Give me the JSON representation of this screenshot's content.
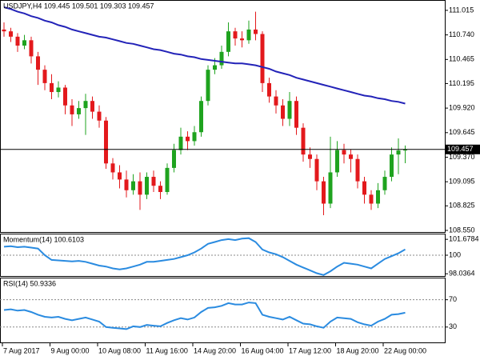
{
  "chart_data": [
    {
      "type": "candlestick",
      "title": "USDJPY,H4  109.445 109.501 109.303 109.457",
      "categories": [
        "7 Aug 2017",
        null,
        null,
        null,
        null,
        null,
        null,
        "9 Aug 00:00",
        null,
        null,
        null,
        null,
        null,
        null,
        "10 Aug 08:00",
        null,
        null,
        null,
        null,
        null,
        null,
        "11 Aug 16:00",
        null,
        null,
        null,
        null,
        null,
        null,
        "14 Aug 20:00",
        null,
        null,
        null,
        null,
        null,
        null,
        "16 Aug 04:00",
        null,
        null,
        null,
        null,
        null,
        null,
        "17 Aug 12:00",
        null,
        null,
        null,
        null,
        null,
        null,
        "18 Aug 20:00",
        null,
        null,
        null,
        null,
        null,
        null,
        "22 Aug 00:00",
        null,
        null,
        null
      ],
      "open": [
        110.8,
        110.78,
        110.72,
        110.62,
        110.68,
        110.5,
        110.35,
        110.2,
        110.1,
        110.15,
        109.95,
        109.85,
        109.92,
        110.0,
        109.88,
        109.78,
        109.3,
        109.2,
        109.12,
        109.0,
        109.1,
        108.95,
        109.15,
        109.05,
        108.98,
        109.25,
        109.45,
        109.6,
        109.55,
        109.65,
        110.0,
        110.35,
        110.4,
        110.55,
        110.78,
        110.7,
        110.68,
        110.8,
        110.75,
        110.2,
        110.05,
        109.95,
        109.8,
        110.0,
        109.7,
        109.4,
        109.35,
        109.1,
        108.85,
        109.2,
        109.45,
        109.4,
        109.35,
        109.1,
        108.95,
        108.85,
        109.0,
        109.15,
        109.4,
        109.445
      ],
      "high": [
        110.88,
        110.82,
        110.76,
        110.74,
        110.72,
        110.55,
        110.4,
        110.3,
        110.22,
        110.18,
        110.02,
        110.0,
        110.08,
        110.05,
        109.95,
        109.82,
        109.36,
        109.28,
        109.22,
        109.18,
        109.2,
        109.2,
        109.22,
        109.1,
        109.3,
        109.52,
        109.7,
        109.66,
        109.72,
        110.05,
        110.4,
        110.48,
        110.62,
        110.88,
        110.82,
        110.78,
        110.9,
        111.0,
        110.78,
        110.26,
        110.12,
        110.02,
        110.1,
        110.05,
        109.75,
        109.48,
        109.4,
        109.15,
        109.6,
        109.55,
        109.52,
        109.46,
        109.4,
        109.15,
        109.0,
        109.08,
        109.22,
        109.48,
        109.58,
        109.501
      ],
      "low": [
        110.72,
        110.66,
        110.55,
        110.58,
        110.42,
        110.18,
        110.12,
        110.02,
        110.04,
        109.85,
        109.72,
        109.8,
        109.62,
        109.8,
        109.7,
        109.24,
        109.12,
        109.02,
        108.92,
        108.95,
        108.78,
        108.9,
        108.98,
        108.9,
        108.95,
        109.2,
        109.4,
        109.45,
        109.5,
        109.6,
        109.95,
        110.3,
        110.36,
        110.5,
        110.62,
        110.6,
        110.64,
        110.68,
        110.1,
        109.98,
        109.86,
        109.72,
        109.72,
        109.62,
        109.32,
        109.25,
        109.0,
        108.72,
        108.8,
        109.15,
        109.3,
        109.2,
        109.02,
        108.85,
        108.78,
        108.8,
        108.95,
        109.1,
        109.18,
        109.303
      ],
      "close": [
        110.78,
        110.72,
        110.62,
        110.68,
        110.5,
        110.35,
        110.2,
        110.1,
        110.15,
        109.95,
        109.85,
        109.92,
        110.0,
        109.88,
        109.78,
        109.3,
        109.2,
        109.12,
        109.0,
        109.1,
        108.95,
        109.15,
        109.05,
        108.98,
        109.25,
        109.45,
        109.6,
        109.55,
        109.65,
        110.0,
        110.35,
        110.4,
        110.55,
        110.78,
        110.7,
        110.68,
        110.8,
        110.75,
        110.2,
        110.05,
        109.95,
        109.8,
        110.0,
        109.7,
        109.4,
        109.35,
        109.1,
        108.85,
        109.2,
        109.45,
        109.4,
        109.35,
        109.1,
        108.95,
        108.85,
        109.0,
        109.15,
        109.4,
        109.445,
        109.457
      ],
      "up_color": "#1fa31f",
      "down_color": "#e3191c",
      "series": [
        {
          "color": "#2323b8",
          "values": [
            111.05,
            111.03,
            111.0,
            110.98,
            110.95,
            110.93,
            110.9,
            110.88,
            110.85,
            110.83,
            110.8,
            110.78,
            110.76,
            110.74,
            110.72,
            110.71,
            110.69,
            110.67,
            110.65,
            110.64,
            110.62,
            110.6,
            110.58,
            110.57,
            110.55,
            110.53,
            110.52,
            110.5,
            110.49,
            110.47,
            110.46,
            110.45,
            110.44,
            110.43,
            110.42,
            110.42,
            110.41,
            110.4,
            110.38,
            110.36,
            110.33,
            110.31,
            110.29,
            110.26,
            110.24,
            110.22,
            110.2,
            110.18,
            110.16,
            110.14,
            110.12,
            110.1,
            110.08,
            110.06,
            110.05,
            110.03,
            110.02,
            110.0,
            109.99,
            109.97
          ]
        }
      ],
      "ylim": [
        108.532,
        111.122
      ],
      "yticks": [
        111.015,
        {
          "value": 110.74,
          "label": "110.740"
        },
        110.465,
        110.195,
        {
          "value": 109.92,
          "label": "109.920"
        },
        109.645,
        {
          "value": 109.37,
          "label": "109.370"
        },
        109.095,
        108.825,
        {
          "value": 108.55,
          "label": "108.550"
        }
      ]
    },
    {
      "type": "line",
      "title": "Momentum(14) 100.6103",
      "series": [
        {
          "color": "#2a8be0",
          "values": [
            100.9,
            100.95,
            100.85,
            100.9,
            100.8,
            100.7,
            100.0,
            99.5,
            99.45,
            99.4,
            99.35,
            99.4,
            99.3,
            99.1,
            98.9,
            98.8,
            98.6,
            98.5,
            98.6,
            98.8,
            99.0,
            99.3,
            99.3,
            99.4,
            99.5,
            99.6,
            99.8,
            100.0,
            100.3,
            100.7,
            101.2,
            101.4,
            101.6,
            101.7,
            101.6,
            101.75,
            101.8,
            101.4,
            100.6,
            100.3,
            100.1,
            99.8,
            99.4,
            99.0,
            98.7,
            98.4,
            98.1,
            97.9,
            98.3,
            98.8,
            99.2,
            99.1,
            99.0,
            98.8,
            98.6,
            99.1,
            99.6,
            99.9,
            100.2,
            100.6103
          ]
        }
      ],
      "ylim": [
        97.8,
        102.2
      ],
      "yticks": [
        101.6784,
        100,
        98.0364
      ],
      "levels": [
        100
      ]
    },
    {
      "type": "line",
      "title": "RSI(14) 50.9336",
      "series": [
        {
          "color": "#2a8be0",
          "values": [
            55,
            56,
            54,
            55,
            52,
            48,
            45,
            44,
            45,
            42,
            40,
            42,
            44,
            41,
            38,
            30,
            29,
            28,
            27,
            31,
            30,
            33,
            32,
            31,
            36,
            40,
            43,
            41,
            44,
            52,
            58,
            59,
            61,
            65,
            63,
            63,
            66,
            65,
            48,
            45,
            43,
            41,
            45,
            40,
            35,
            34,
            31,
            29,
            38,
            44,
            43,
            42,
            37,
            34,
            32,
            38,
            42,
            48,
            49,
            50.9336
          ]
        }
      ],
      "ylim": [
        7.5,
        101.25
      ],
      "yticks": [
        70,
        30
      ],
      "levels": [
        70,
        30
      ]
    }
  ]
}
